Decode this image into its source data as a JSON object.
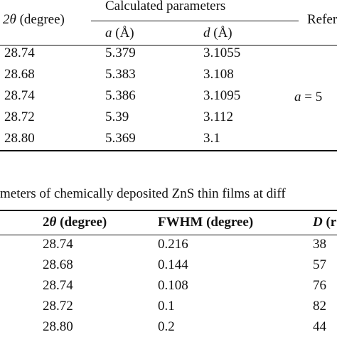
{
  "table1": {
    "header": {
      "col1_sym": "2θ",
      "col1_rest": " (degree)",
      "group": "Calculated parameters",
      "sub_a_sym": "a",
      "sub_a_rest": " (Å)",
      "sub_d_sym": "d",
      "sub_d_rest": " (Å)",
      "ref": "Refer"
    },
    "rows": [
      {
        "two_theta": "28.74",
        "a": "5.379",
        "d": "3.1055"
      },
      {
        "two_theta": "28.68",
        "a": "5.383",
        "d": "3.108"
      },
      {
        "two_theta": "28.74",
        "a": "5.386",
        "d": "3.1095"
      },
      {
        "two_theta": "28.72",
        "a": "5.39",
        "d": "3.112"
      },
      {
        "two_theta": "28.80",
        "a": "5.369",
        "d": "3.1"
      }
    ],
    "ref_value_sym": "a",
    "ref_value_rest": " = 5"
  },
  "table2": {
    "caption": "meters of chemically deposited ZnS thin films at diff",
    "header": {
      "col1_pre": "2",
      "col1_sym": "θ",
      "col1_rest": " (degree)",
      "col2": "FWHM (degree)",
      "col3_sym": "D",
      "col3_rest": " (r"
    },
    "rows": [
      {
        "two_theta": "28.74",
        "fwhm": "0.216",
        "d": "38"
      },
      {
        "two_theta": "28.68",
        "fwhm": "0.144",
        "d": "57"
      },
      {
        "two_theta": "28.74",
        "fwhm": "0.108",
        "d": "76"
      },
      {
        "two_theta": "28.72",
        "fwhm": "0.1",
        "d": "82"
      },
      {
        "two_theta": "28.80",
        "fwhm": "0.2",
        "d": "44"
      }
    ]
  }
}
